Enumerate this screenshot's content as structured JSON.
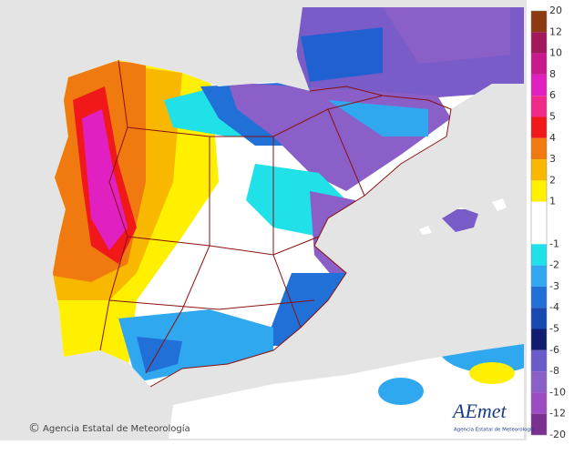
{
  "map": {
    "credit": {
      "symbol": "©",
      "text": "Agencia Estatal de Meteorología"
    },
    "logo": {
      "name": "AEmet",
      "subtitle": "Agencia Estatal de Meteorología"
    },
    "legend": {
      "labels": [
        "20",
        "12",
        "10",
        "8",
        "6",
        "5",
        "4",
        "3",
        "2",
        "1",
        "",
        "-1",
        "-2",
        "-3",
        "-4",
        "-5",
        "-6",
        "-8",
        "-10",
        "-12",
        "-20"
      ],
      "colors": [
        "#8b3a12",
        "#a3185a",
        "#c81a8c",
        "#e020c0",
        "#f02a8a",
        "#f01818",
        "#f07a10",
        "#f8b800",
        "#fff000",
        "#ffffff",
        "#ffffff",
        "#20e0e8",
        "#30a8f0",
        "#2070d8",
        "#1848b0",
        "#101c70",
        "#6a5cc8",
        "#8a60c8",
        "#9a4cc0",
        "#7a3090"
      ]
    }
  }
}
